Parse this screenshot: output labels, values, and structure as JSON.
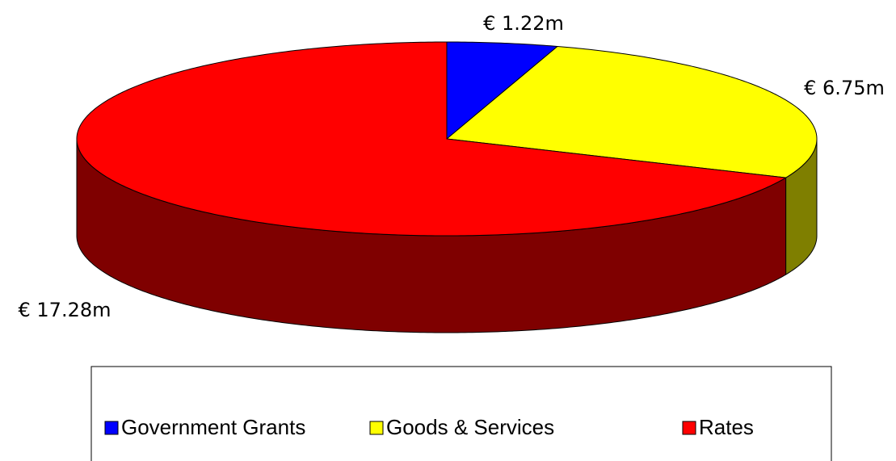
{
  "chart_data": {
    "type": "pie",
    "categories": [
      "Government Grants",
      "Goods & Services",
      "Rates"
    ],
    "values": [
      1.22,
      6.75,
      17.28
    ],
    "value_labels": [
      "€ 1.22m",
      "€ 6.75m",
      "€ 17.28m"
    ],
    "colors": [
      "#0000ff",
      "#ffff00",
      "#ff0000"
    ],
    "legend": "bottom"
  }
}
